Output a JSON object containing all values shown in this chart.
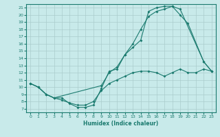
{
  "xlabel": "Humidex (Indice chaleur)",
  "bg_color": "#c8eaea",
  "grid_color": "#aacccc",
  "line_color": "#1a7a6e",
  "xlim": [
    -0.5,
    23.5
  ],
  "ylim": [
    6.5,
    21.5
  ],
  "yticks": [
    7,
    8,
    9,
    10,
    11,
    12,
    13,
    14,
    15,
    16,
    17,
    18,
    19,
    20,
    21
  ],
  "xticks": [
    0,
    1,
    2,
    3,
    4,
    5,
    6,
    7,
    8,
    9,
    10,
    11,
    12,
    13,
    14,
    15,
    16,
    17,
    18,
    19,
    20,
    21,
    22,
    23
  ],
  "line1_x": [
    0,
    1,
    2,
    3,
    4,
    5,
    6,
    7,
    8,
    9,
    10,
    11,
    12,
    13,
    14,
    15,
    16,
    17,
    18,
    19,
    20,
    21,
    22,
    23
  ],
  "line1_y": [
    10.5,
    10.0,
    9.0,
    8.5,
    8.2,
    7.8,
    7.5,
    7.5,
    8.0,
    9.5,
    10.5,
    11.0,
    11.5,
    12.0,
    12.2,
    12.2,
    12.0,
    11.5,
    12.0,
    12.5,
    12.0,
    12.0,
    12.5,
    12.2
  ],
  "line2_x": [
    0,
    1,
    2,
    3,
    4,
    5,
    6,
    7,
    8,
    9,
    10,
    11,
    12,
    13,
    14,
    15,
    16,
    17,
    18,
    19,
    20,
    22,
    23
  ],
  "line2_y": [
    10.5,
    10.0,
    9.0,
    8.5,
    8.5,
    7.7,
    7.2,
    7.2,
    7.5,
    9.8,
    12.2,
    12.5,
    14.5,
    16.0,
    18.0,
    19.8,
    20.5,
    20.8,
    21.2,
    20.0,
    18.8,
    13.5,
    12.2
  ],
  "line3_x": [
    0,
    1,
    2,
    3,
    9,
    10,
    11,
    12,
    13,
    14,
    15,
    16,
    17,
    18,
    19,
    22,
    23
  ],
  "line3_y": [
    10.5,
    10.0,
    9.0,
    8.5,
    10.2,
    12.0,
    12.8,
    14.5,
    15.5,
    16.5,
    20.5,
    21.0,
    21.2,
    21.2,
    20.8,
    13.5,
    12.2
  ]
}
